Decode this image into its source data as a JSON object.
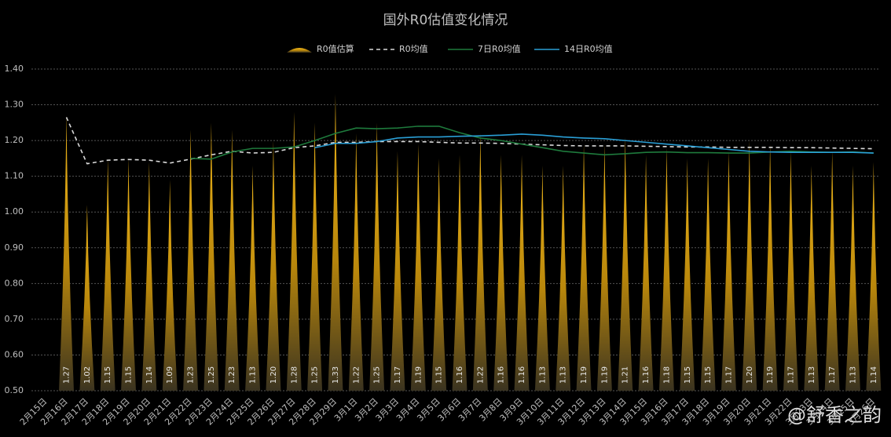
{
  "chart_data": {
    "type": "combo",
    "title": "国外R0估值变化情况",
    "watermark": "@舒香之韵",
    "categories": [
      "2月15日",
      "2月16日",
      "2月17日",
      "2月18日",
      "2月19日",
      "2月20日",
      "2月21日",
      "2月22日",
      "2月23日",
      "2月24日",
      "2月25日",
      "2月26日",
      "2月27日",
      "2月28日",
      "2月29日",
      "3月1日",
      "3月2日",
      "3月3日",
      "3月4日",
      "3月5日",
      "3月6日",
      "3月7日",
      "3月8日",
      "3月9日",
      "3月10日",
      "3月11日",
      "3月12日",
      "3月13日",
      "3月14日",
      "3月15日",
      "3月16日",
      "3月17日",
      "3月18日",
      "3月19日",
      "3月20日",
      "3月21日",
      "3月22日",
      "3月23日",
      "3月24日",
      "3月25日",
      "3月26日"
    ],
    "series": [
      {
        "name": "R0值估算",
        "type": "spike",
        "color": "#d9a514",
        "values": [
          null,
          1.27,
          1.02,
          1.15,
          1.15,
          1.14,
          1.09,
          1.23,
          1.25,
          1.23,
          1.13,
          1.2,
          1.28,
          1.25,
          1.33,
          1.22,
          1.25,
          1.17,
          1.19,
          1.15,
          1.16,
          1.22,
          1.16,
          1.16,
          1.13,
          1.13,
          1.19,
          1.19,
          1.21,
          1.16,
          1.18,
          1.15,
          1.15,
          1.17,
          1.2,
          1.19,
          1.17,
          1.13,
          1.17,
          1.13,
          1.14
        ],
        "value_labels": [
          null,
          "1.27",
          "1.02",
          "1.15",
          "1.15",
          "1.14",
          "1.09",
          "1.23",
          "1.25",
          "1.23",
          "1.13",
          "1.20",
          "1.28",
          "1.25",
          "1.33",
          "1.22",
          "1.25",
          "1.17",
          "1.19",
          "1.15",
          "1.16",
          "1.22",
          "1.16",
          "1.16",
          "1.13",
          "1.13",
          "1.19",
          "1.19",
          "1.21",
          "1.16",
          "1.18",
          "1.15",
          "1.15",
          "1.17",
          "1.20",
          "1.19",
          "1.17",
          "1.13",
          "1.17",
          "1.13",
          "1.14"
        ]
      },
      {
        "name": "R0均值",
        "type": "dashed",
        "color": "#d9d9d9",
        "values": [
          null,
          1.265,
          1.135,
          1.145,
          1.147,
          1.145,
          1.137,
          1.148,
          1.16,
          1.17,
          1.165,
          1.167,
          1.18,
          1.185,
          1.195,
          1.195,
          1.197,
          1.197,
          1.197,
          1.195,
          1.193,
          1.193,
          1.192,
          1.19,
          1.188,
          1.186,
          1.185,
          1.185,
          1.185,
          1.184,
          1.183,
          1.182,
          1.182,
          1.181,
          1.181,
          1.181,
          1.18,
          1.18,
          1.179,
          1.178,
          1.177
        ]
      },
      {
        "name": "7日R0均值",
        "type": "line",
        "color": "#1e7a3c",
        "values": [
          null,
          null,
          null,
          null,
          null,
          null,
          null,
          1.15,
          1.148,
          1.168,
          1.178,
          1.178,
          1.182,
          1.2,
          1.22,
          1.235,
          1.233,
          1.235,
          1.24,
          1.24,
          1.222,
          1.207,
          1.2,
          1.19,
          1.18,
          1.17,
          1.165,
          1.16,
          1.163,
          1.167,
          1.168,
          1.166,
          1.166,
          1.165,
          1.165,
          1.168,
          1.17,
          1.168,
          1.167,
          1.168,
          1.165
        ]
      },
      {
        "name": "14日R0均值",
        "type": "line",
        "color": "#2a9fd6",
        "values": [
          null,
          null,
          null,
          null,
          null,
          null,
          null,
          null,
          null,
          null,
          null,
          null,
          null,
          1.18,
          1.192,
          1.192,
          1.197,
          1.207,
          1.21,
          1.21,
          1.212,
          1.213,
          1.215,
          1.218,
          1.215,
          1.21,
          1.207,
          1.205,
          1.2,
          1.195,
          1.19,
          1.185,
          1.18,
          1.175,
          1.17,
          1.168,
          1.167,
          1.167,
          1.167,
          1.167,
          1.165
        ]
      }
    ],
    "ylim": [
      0.5,
      1.4
    ],
    "yticks": [
      {
        "value": 0.5,
        "label": "0.50"
      },
      {
        "value": 0.6,
        "label": "0.60"
      },
      {
        "value": 0.7,
        "label": "0.70"
      },
      {
        "value": 0.8,
        "label": "0.80"
      },
      {
        "value": 0.9,
        "label": "0.90"
      },
      {
        "value": 1.0,
        "label": "1.00"
      },
      {
        "value": 1.1,
        "label": "1.10"
      },
      {
        "value": 1.2,
        "label": "1.20"
      },
      {
        "value": 1.3,
        "label": "1.30"
      },
      {
        "value": 1.4,
        "label": "1.40"
      }
    ],
    "grid": true,
    "legend": "top"
  }
}
